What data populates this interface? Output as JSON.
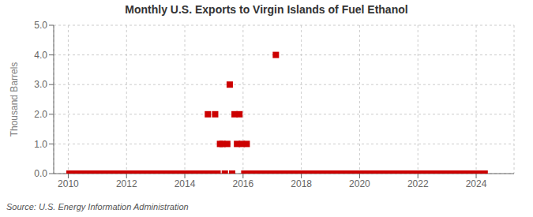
{
  "chart_data": {
    "type": "scatter",
    "title": "Monthly U.S. Exports to Virgin Islands of Fuel Ethanol",
    "ylabel": "Thousand Barrels",
    "source": "Source: U.S. Energy Information Administration",
    "color": "#cc0000",
    "marker": "square",
    "grid": true,
    "xlim": [
      2009.5,
      2025.3
    ],
    "ylim": [
      0.0,
      5.0
    ],
    "xticks": [
      2010,
      2012,
      2014,
      2016,
      2018,
      2020,
      2022,
      2024
    ],
    "yticks": [
      {
        "value": 0,
        "label": "0.0"
      },
      {
        "value": 1,
        "label": "1.0"
      },
      {
        "value": 2,
        "label": "2.0"
      },
      {
        "value": 3,
        "label": "3.0"
      },
      {
        "value": 4,
        "label": "4.0"
      },
      {
        "value": 5,
        "label": "5.0"
      }
    ],
    "x": [
      2010.0417,
      2010.125,
      2010.208,
      2010.292,
      2010.375,
      2010.458,
      2010.542,
      2010.625,
      2010.708,
      2010.792,
      2010.875,
      2010.958,
      2011.0417,
      2011.125,
      2011.208,
      2011.292,
      2011.375,
      2011.458,
      2011.542,
      2011.625,
      2011.708,
      2011.792,
      2011.875,
      2011.958,
      2012.0417,
      2012.125,
      2012.208,
      2012.292,
      2012.375,
      2012.458,
      2012.542,
      2012.625,
      2012.708,
      2012.792,
      2012.875,
      2012.958,
      2013.0417,
      2013.125,
      2013.208,
      2013.292,
      2013.375,
      2013.458,
      2013.542,
      2013.625,
      2013.708,
      2013.792,
      2013.875,
      2013.958,
      2014.0417,
      2014.125,
      2014.208,
      2014.292,
      2014.375,
      2014.458,
      2014.542,
      2014.625,
      2014.708,
      2014.792,
      2014.875,
      2014.958,
      2015.0417,
      2015.125,
      2015.208,
      2015.292,
      2015.375,
      2015.458,
      2015.542,
      2015.625,
      2015.708,
      2015.792,
      2015.875,
      2015.958,
      2016.0417,
      2016.125,
      2016.208,
      2016.292,
      2016.375,
      2016.458,
      2016.542,
      2016.625,
      2016.708,
      2016.792,
      2016.875,
      2016.958,
      2017.0417,
      2017.125,
      2017.208,
      2017.292,
      2017.375,
      2017.458,
      2017.542,
      2017.625,
      2017.708,
      2017.792,
      2017.875,
      2017.958,
      2018.0417,
      2018.125,
      2018.208,
      2018.292,
      2018.375,
      2018.458,
      2018.542,
      2018.625,
      2018.708,
      2018.792,
      2018.875,
      2018.958,
      2019.0417,
      2019.125,
      2019.208,
      2019.292,
      2019.375,
      2019.458,
      2019.542,
      2019.625,
      2019.708,
      2019.792,
      2019.875,
      2019.958,
      2020.0417,
      2020.125,
      2020.208,
      2020.292,
      2020.375,
      2020.458,
      2020.542,
      2020.625,
      2020.708,
      2020.792,
      2020.875,
      2020.958,
      2021.0417,
      2021.125,
      2021.208,
      2021.292,
      2021.375,
      2021.458,
      2021.542,
      2021.625,
      2021.708,
      2021.792,
      2021.875,
      2021.958,
      2022.0417,
      2022.125,
      2022.208,
      2022.292,
      2022.375,
      2022.458,
      2022.542,
      2022.625,
      2022.708,
      2022.792,
      2022.875,
      2022.958,
      2023.0417,
      2023.125,
      2023.208,
      2023.292,
      2023.375,
      2023.458,
      2023.542,
      2023.625,
      2023.708,
      2023.792,
      2023.875,
      2023.958,
      2024.0417,
      2024.125,
      2024.208,
      2024.292
    ],
    "values": [
      0.0,
      0.0,
      0.0,
      0.0,
      0.0,
      0.0,
      0.0,
      0.0,
      0.0,
      0.0,
      0.0,
      0.0,
      0.0,
      0.0,
      0.0,
      0.0,
      0.0,
      0.0,
      0.0,
      0.0,
      0.0,
      0.0,
      0.0,
      0.0,
      0.0,
      0.0,
      0.0,
      0.0,
      0.0,
      0.0,
      0.0,
      0.0,
      0.0,
      0.0,
      0.0,
      0.0,
      0.0,
      0.0,
      0.0,
      0.0,
      0.0,
      0.0,
      0.0,
      0.0,
      0.0,
      0.0,
      0.0,
      0.0,
      0.0,
      0.0,
      0.0,
      0.0,
      0.0,
      0.0,
      0.0,
      0.0,
      0.0,
      2.0,
      0.0,
      0.0,
      2.0,
      0.0,
      1.0,
      1.0,
      0.0,
      1.0,
      3.0,
      0.0,
      2.0,
      1.0,
      2.0,
      1.0,
      0.0,
      1.0,
      0.0,
      0.0,
      0.0,
      0.0,
      0.0,
      0.0,
      0.0,
      0.0,
      0.0,
      0.0,
      0.0,
      4.0,
      0.0,
      0.0,
      0.0,
      0.0,
      0.0,
      0.0,
      0.0,
      0.0,
      0.0,
      0.0,
      0.0,
      0.0,
      0.0,
      0.0,
      0.0,
      0.0,
      0.0,
      0.0,
      0.0,
      0.0,
      0.0,
      0.0,
      0.0,
      0.0,
      0.0,
      0.0,
      0.0,
      0.0,
      0.0,
      0.0,
      0.0,
      0.0,
      0.0,
      0.0,
      0.0,
      0.0,
      0.0,
      0.0,
      0.0,
      0.0,
      0.0,
      0.0,
      0.0,
      0.0,
      0.0,
      0.0,
      0.0,
      0.0,
      0.0,
      0.0,
      0.0,
      0.0,
      0.0,
      0.0,
      0.0,
      0.0,
      0.0,
      0.0,
      0.0,
      0.0,
      0.0,
      0.0,
      0.0,
      0.0,
      0.0,
      0.0,
      0.0,
      0.0,
      0.0,
      0.0,
      0.0,
      0.0,
      0.0,
      0.0,
      0.0,
      0.0,
      0.0,
      0.0,
      0.0,
      0.0,
      0.0,
      0.0,
      0.0,
      0.0,
      0.0,
      0.0
    ]
  }
}
